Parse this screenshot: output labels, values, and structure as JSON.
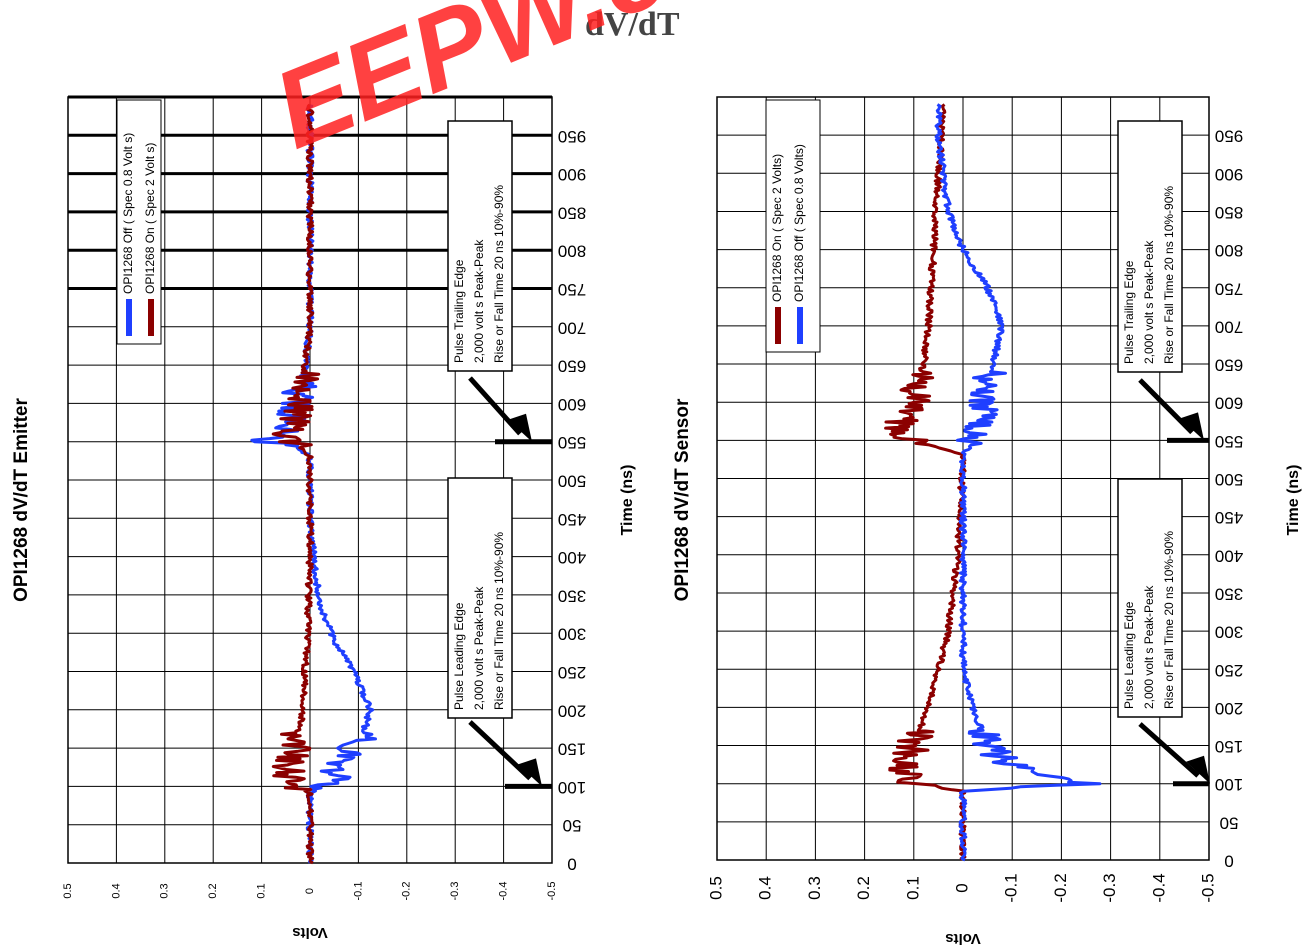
{
  "page": {
    "title": "dV/dT",
    "watermark_text": "EEPW.com"
  },
  "colors": {
    "blue": "#1f3fff",
    "dark_red": "#8b0000",
    "grid": "#000000",
    "watermark": "#ff2020"
  },
  "chart_data": [
    {
      "type": "line",
      "title": "OPI1268 dV/dT Emitter",
      "xlabel": "Time (ns)",
      "ylabel": "Volts",
      "xlim": [
        0,
        1000
      ],
      "ylim": [
        -0.5,
        0.5
      ],
      "x_ticks": [
        "0",
        "50",
        "100",
        "150",
        "200",
        "250",
        "300",
        "350",
        "400",
        "450",
        "500",
        "550",
        "600",
        "650",
        "700",
        "750",
        "800",
        "850",
        "900",
        "950"
      ],
      "y_ticks": [
        "0.5",
        "0.4",
        "0.3",
        "0.2",
        "0.1",
        "0",
        "-0.1",
        "-0.2",
        "-0.3",
        "-0.4",
        "-0.5"
      ],
      "legend": [
        "OPI1268 Off ( Spec 0.8 Volt s)",
        "OPI1268 On ( Spec 2 Volt s)"
      ],
      "annotations": [
        {
          "lines": [
            "Pulse Leading Edge",
            "2,000 volt s Peak-Peak",
            "Rise or Fall Time 20 ns 10%-90%"
          ],
          "points_to_x": 100
        },
        {
          "lines": [
            "Pulse Trailing Edge",
            "2,000 volt s Peak-Peak",
            "Rise or Fall Time 20 ns 10%-90%"
          ],
          "points_to_x": 550
        }
      ],
      "series": [
        {
          "name": "OPI1268 Off ( Spec 0.8 Volt s)",
          "color": "#1f3fff",
          "x": [
            0,
            90,
            100,
            110,
            130,
            150,
            170,
            190,
            200,
            220,
            250,
            290,
            330,
            380,
            450,
            530,
            545,
            550,
            555,
            565,
            580,
            600,
            620,
            650,
            700,
            800,
            990
          ],
          "y": [
            0,
            0,
            -0.02,
            -0.05,
            -0.06,
            -0.09,
            -0.11,
            -0.12,
            -0.125,
            -0.11,
            -0.09,
            -0.05,
            -0.025,
            -0.01,
            0,
            0,
            0.03,
            0.1,
            0.07,
            0.05,
            0.04,
            0.03,
            0.02,
            0.01,
            0,
            0,
            0
          ]
        },
        {
          "name": "OPI1268 On ( Spec 2 Volt s)",
          "color": "#8b0000",
          "x": [
            0,
            90,
            100,
            110,
            130,
            150,
            200,
            250,
            300,
            400,
            530,
            545,
            550,
            555,
            570,
            600,
            650,
            700,
            800,
            990
          ],
          "y": [
            0,
            0,
            0.03,
            0.045,
            0.04,
            0.03,
            0.015,
            0.01,
            0.005,
            0,
            0,
            0.02,
            0.06,
            0.045,
            0.035,
            0.025,
            0.01,
            0,
            0,
            0
          ]
        }
      ]
    },
    {
      "type": "line",
      "title": "OPI1268 dV/dT Sensor",
      "xlabel": "Time (ns)",
      "ylabel": "Volts",
      "xlim": [
        0,
        1000
      ],
      "ylim": [
        -0.5,
        0.5
      ],
      "x_ticks": [
        "0",
        "50",
        "100",
        "150",
        "200",
        "250",
        "300",
        "350",
        "400",
        "450",
        "500",
        "550",
        "600",
        "650",
        "700",
        "750",
        "800",
        "850",
        "900",
        "950"
      ],
      "y_ticks": [
        "0.5",
        "0.4",
        "0.3",
        "0.2",
        "0.1",
        "0",
        "-0.1",
        "-0.2",
        "-0.3",
        "-0.4",
        "-0.5"
      ],
      "legend": [
        "OPI1268 On ( Spec 2 Volts)",
        "OPI1268 Off ( Spec 0.8 Volts)"
      ],
      "annotations": [
        {
          "lines": [
            "Pulse Leading Edge",
            "2,000 volt s Peak-Peak",
            "Rise or Fall Time 20 ns 10%-90%"
          ],
          "points_to_x": 100
        },
        {
          "lines": [
            "Pulse Trailing Edge",
            "2,000 volt s Peak-Peak",
            "Rise or Fall Time 20 ns 10%-90%"
          ],
          "points_to_x": 550
        }
      ],
      "series": [
        {
          "name": "OPI1268 On ( Spec 2 Volts)",
          "color": "#8b0000",
          "x": [
            0,
            90,
            100,
            110,
            130,
            150,
            200,
            250,
            300,
            400,
            530,
            550,
            560,
            580,
            600,
            650,
            700,
            800,
            900,
            990
          ],
          "y": [
            0,
            0,
            0.1,
            0.11,
            0.12,
            0.1,
            0.07,
            0.05,
            0.03,
            0.01,
            0,
            0.1,
            0.14,
            0.12,
            0.1,
            0.08,
            0.07,
            0.06,
            0.05,
            0.04
          ]
        },
        {
          "name": "OPI1268 Off ( Spec 0.8 Volts)",
          "color": "#1f3fff",
          "x": [
            0,
            90,
            100,
            110,
            130,
            150,
            200,
            250,
            300,
            400,
            530,
            550,
            600,
            650,
            700,
            750,
            800,
            850,
            900,
            950,
            990
          ],
          "y": [
            0,
            0,
            -0.25,
            -0.15,
            -0.08,
            -0.05,
            -0.02,
            0,
            0,
            0,
            0,
            -0.02,
            -0.04,
            -0.06,
            -0.08,
            -0.05,
            0,
            0.03,
            0.04,
            0.05,
            0.05
          ]
        }
      ]
    }
  ]
}
